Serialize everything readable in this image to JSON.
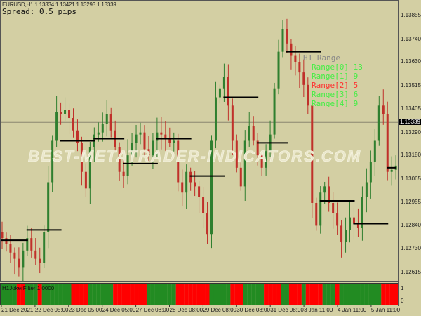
{
  "header": {
    "symbol_line": "EURUSD,H1  1.13334 1.13421 1.13293 1.13339",
    "spread": "Spread: 0.5 pips"
  },
  "watermark": "BEST-METATRADER-INDICATORS.COM",
  "range_panel": {
    "title": "H1 Range",
    "items": [
      {
        "label": "Range[0] 13",
        "color": "#44ee44"
      },
      {
        "label": "Range[1] 9",
        "color": "#44ee44"
      },
      {
        "label": "Range[2] 5",
        "color": "#ff3030"
      },
      {
        "label": "Range[3] 6",
        "color": "#44ee44"
      },
      {
        "label": "Range[4] 9",
        "color": "#44ee44"
      }
    ]
  },
  "colors": {
    "background": "#d3cfa3",
    "bull": "#2f7f2f",
    "bear": "#c0302a",
    "filter_on": "#228b22",
    "filter_off": "#ff0000",
    "range_line": "#000000",
    "bid_line": "#8a8670"
  },
  "chart_data": {
    "type": "candlestick",
    "timeframe": "H1",
    "ylim": [
      1.1258,
      1.1392
    ],
    "current_price": "1.13339",
    "price_ticks": [
      "1.13855",
      "1.13740",
      "1.13630",
      "1.13515",
      "1.13405",
      "1.13290",
      "1.13180",
      "1.13065",
      "1.12955",
      "1.12840",
      "1.12730",
      "1.12615"
    ],
    "time_labels": [
      "21 Dec 2021",
      "22 Dec 05:00",
      "23 Dec 05:00",
      "24 Dec 05:00",
      "27 Dec 08:00",
      "28 Dec 08:00",
      "29 Dec 08:00",
      "30 Dec 08:00",
      "31 Dec 08:00",
      "3 Jan 11:00",
      "4 Jan 11:00",
      "5 Jan 11:00"
    ],
    "closes": [
      1.1278,
      1.1275,
      1.1271,
      1.1268,
      1.1264,
      1.1272,
      1.1278,
      1.1272,
      1.1268,
      1.1266,
      1.1281,
      1.1305,
      1.1325,
      1.1339,
      1.1338,
      1.134,
      1.1336,
      1.133,
      1.1324,
      1.131,
      1.1302,
      1.1322,
      1.1328,
      1.1329,
      1.1333,
      1.1338,
      1.133,
      1.1322,
      1.131,
      1.1308,
      1.1318,
      1.1324,
      1.1328,
      1.1329,
      1.1321,
      1.1318,
      1.1325,
      1.1329,
      1.1328,
      1.1326,
      1.1324,
      1.1325,
      1.1305,
      1.13,
      1.131,
      1.1305,
      1.1303,
      1.1298,
      1.129,
      1.128,
      1.1325,
      1.1346,
      1.135,
      1.1356,
      1.1342,
      1.1325,
      1.1312,
      1.1303,
      1.1325,
      1.1332,
      1.1325,
      1.1318,
      1.1312,
      1.132,
      1.1328,
      1.135,
      1.1368,
      1.1379,
      1.1372,
      1.1366,
      1.1363,
      1.1358,
      1.1352,
      1.1342,
      1.1295,
      1.1284,
      1.13,
      1.1303,
      1.1295,
      1.129,
      1.1284,
      1.1276,
      1.1282,
      1.1288,
      1.1285,
      1.1283,
      1.1298,
      1.1305,
      1.1315,
      1.1325,
      1.1342,
      1.1338,
      1.131,
      1.1311,
      1.1313
    ],
    "range_levels": [
      {
        "price": 1.1277,
        "from": 0,
        "to": 6
      },
      {
        "price": 1.1282,
        "from": 6,
        "to": 14
      },
      {
        "price": 1.1325,
        "from": 14,
        "to": 22
      },
      {
        "price": 1.1326,
        "from": 22,
        "to": 29
      },
      {
        "price": 1.1314,
        "from": 29,
        "to": 37
      },
      {
        "price": 1.1326,
        "from": 37,
        "to": 45
      },
      {
        "price": 1.1308,
        "from": 45,
        "to": 53
      },
      {
        "price": 1.1346,
        "from": 53,
        "to": 61
      },
      {
        "price": 1.1324,
        "from": 61,
        "to": 68
      },
      {
        "price": 1.1368,
        "from": 68,
        "to": 76
      },
      {
        "price": 1.1296,
        "from": 76,
        "to": 84
      },
      {
        "price": 1.1285,
        "from": 84,
        "to": 92
      },
      {
        "price": 1.1312,
        "from": 92,
        "to": 94
      }
    ]
  },
  "indicator": {
    "name": "H1JokerFilter 1.0000",
    "axis": [
      "1",
      "0"
    ],
    "signal": [
      1,
      1,
      1,
      1,
      0,
      0,
      1,
      1,
      1,
      0,
      1,
      1,
      1,
      1,
      1,
      1,
      1,
      0,
      0,
      0,
      0,
      1,
      1,
      1,
      1,
      1,
      1,
      0,
      0,
      0,
      0,
      0,
      0,
      0,
      0,
      1,
      1,
      1,
      1,
      1,
      1,
      1,
      0,
      0,
      0,
      0,
      0,
      0,
      0,
      0,
      1,
      1,
      1,
      1,
      1,
      0,
      0,
      0,
      1,
      1,
      1,
      1,
      1,
      0,
      0,
      0,
      0,
      1,
      1,
      0,
      0,
      0,
      1,
      0,
      0,
      0,
      0,
      1,
      1,
      1,
      0,
      1,
      1,
      1,
      1,
      1,
      1,
      1,
      1,
      1,
      1,
      0,
      0,
      0,
      0
    ]
  }
}
